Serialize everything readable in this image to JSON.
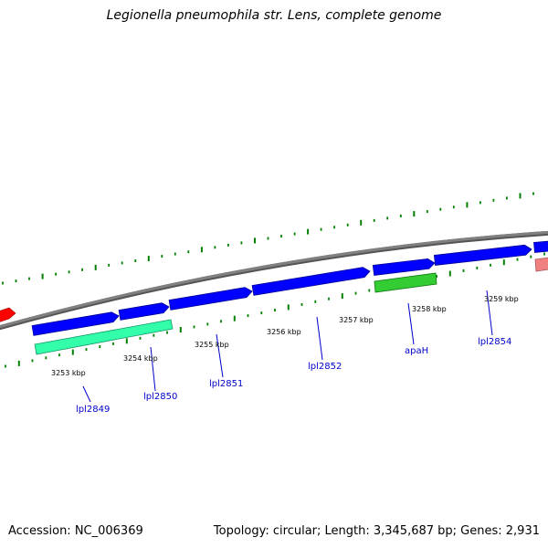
{
  "title": "Legionella pneumophila str. Lens, complete genome",
  "footer": {
    "accession": "Accession: NC_006369",
    "summary": "Topology: circular; Length: 3,345,687 bp; Genes: 2,931"
  },
  "colors": {
    "backbone": "#808080",
    "forward_cds": "#0000ff",
    "reverse_cds_teal": "#33ffaa",
    "reverse_cds_green": "#33cc33",
    "other_feature_red": "#ff0000",
    "other_feature_pink": "#f08080",
    "tick_marks": "#008000",
    "gene_label": "#0000cc"
  },
  "kbp_labels": [
    "3253 kbp",
    "3254 kbp",
    "3255 kbp",
    "3256 kbp",
    "3257 kbp",
    "3258 kbp",
    "3259 kbp"
  ],
  "gene_labels": [
    "lpl2849",
    "lpl2850",
    "lpl2851",
    "lpl2852",
    "apaH",
    "lpl2854"
  ]
}
